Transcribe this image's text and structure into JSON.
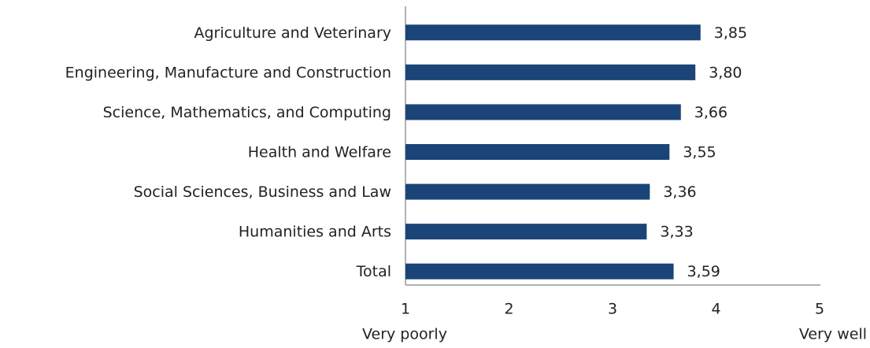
{
  "chart_data": {
    "type": "barh",
    "categories": [
      "Agriculture and Veterinary",
      "Engineering, Manufacture and Construction",
      "Science, Mathematics, and Computing",
      "Health and Welfare",
      "Social Sciences, Business and Law",
      "Humanities and Arts",
      "Total"
    ],
    "values": [
      3.85,
      3.8,
      3.66,
      3.55,
      3.36,
      3.33,
      3.59
    ],
    "value_labels": [
      "3,85",
      "3,80",
      "3,66",
      "3,55",
      "3,36",
      "3,33",
      "3,59"
    ],
    "color": "#1b4478",
    "xlim": [
      1,
      5
    ],
    "xticks": [
      1,
      2,
      3,
      4,
      5
    ],
    "grid": false,
    "annotations": [
      {
        "text": "Very poorly",
        "x": 1
      },
      {
        "text": "Very well",
        "x": 5
      }
    ]
  }
}
